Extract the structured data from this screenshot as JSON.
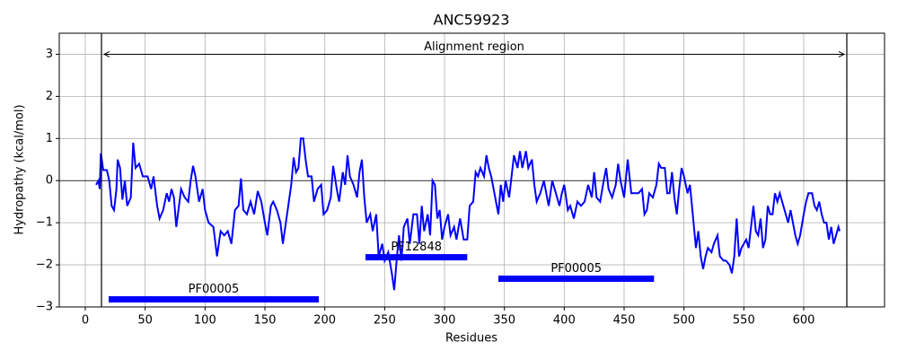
{
  "chart_data": {
    "type": "line",
    "title": "ANC59923",
    "xlabel": "Residues",
    "ylabel": "Hydropathy (kcal/mol)",
    "xlim": [
      -21.75,
      667.5
    ],
    "ylim": [
      -3,
      3.5
    ],
    "xticks": [
      0,
      50,
      100,
      150,
      200,
      250,
      300,
      350,
      400,
      450,
      500,
      550,
      600
    ],
    "yticks": [
      {
        "value": -3,
        "label": "−3"
      },
      {
        "value": -2,
        "label": "−2"
      },
      {
        "value": -1,
        "label": "−1"
      },
      0,
      1,
      2,
      3
    ],
    "grid": true,
    "hline": 0,
    "vlines": [
      13.5,
      636
    ],
    "arrow": {
      "start": 13.5,
      "end": 636,
      "y": 3,
      "label": "Alignment region"
    },
    "domains": [
      {
        "name": "PF00005",
        "start": 19.5,
        "end": 195,
        "y": -2.82
      },
      {
        "name": "PF12848",
        "start": 234,
        "end": 319,
        "y": -1.82
      },
      {
        "name": "PF00005",
        "start": 345,
        "end": 475,
        "y": -2.33
      }
    ],
    "domain_color": "#0000ff",
    "x": [
      9,
      11,
      12,
      13,
      15,
      18,
      20,
      22,
      24,
      26,
      27,
      29,
      31,
      33,
      35,
      38,
      40,
      42,
      45,
      48,
      52,
      55,
      57,
      60,
      62,
      65,
      68,
      70,
      72,
      74,
      76,
      80,
      83,
      86,
      88,
      90,
      92,
      95,
      98,
      100,
      103,
      107,
      110,
      113,
      116,
      119,
      122,
      125,
      128,
      130,
      132,
      135,
      138,
      141,
      144,
      147,
      150,
      152,
      155,
      157,
      160,
      163,
      165,
      168,
      170,
      172,
      174,
      176,
      178,
      180,
      182,
      184,
      186,
      189,
      191,
      194,
      197,
      199,
      202,
      205,
      207,
      210,
      212,
      215,
      217,
      219,
      221,
      224,
      227,
      229,
      231,
      233,
      235,
      238,
      240,
      243,
      245,
      248,
      250,
      253,
      256,
      258,
      260,
      262,
      264,
      266,
      269,
      271,
      274,
      277,
      279,
      281,
      283,
      286,
      288,
      290,
      292,
      294,
      296,
      298,
      300,
      303,
      305,
      308,
      310,
      313,
      316,
      319,
      321,
      324,
      326,
      328,
      330,
      333,
      335,
      337,
      339,
      341,
      343,
      345,
      347,
      349,
      351,
      354,
      356,
      358,
      361,
      363,
      365,
      368,
      370,
      373,
      375,
      377,
      380,
      383,
      385,
      387,
      390,
      393,
      396,
      398,
      400,
      403,
      405,
      408,
      411,
      414,
      417,
      420,
      423,
      425,
      427,
      430,
      433,
      435,
      437,
      440,
      443,
      445,
      447,
      450,
      453,
      456,
      459,
      462,
      465,
      467,
      469,
      471,
      474,
      477,
      479,
      481,
      484,
      486,
      488,
      490,
      492,
      494,
      496,
      498,
      500,
      503,
      505,
      508,
      510,
      512,
      514,
      516,
      518,
      520,
      523,
      525,
      528,
      530,
      533,
      535,
      538,
      540,
      542,
      544,
      546,
      548,
      550,
      552,
      554,
      556,
      558,
      560,
      562,
      564,
      566,
      568,
      570,
      572,
      574,
      576,
      578,
      580,
      582,
      585,
      587,
      589,
      591,
      593,
      595,
      597,
      600,
      602,
      604,
      607,
      609,
      611,
      613,
      615,
      617,
      619,
      621,
      623,
      625,
      627,
      629,
      630
    ],
    "series": [
      {
        "name": "Hydropathy",
        "color": "#0000ff",
        "values": [
          -0.1,
          0,
          -0.2,
          0.65,
          0.25,
          0.25,
          0,
          -0.6,
          -0.7,
          -0.2,
          0.5,
          0.3,
          -0.45,
          0,
          -0.6,
          -0.4,
          0.9,
          0.3,
          0.4,
          0.1,
          0.1,
          -0.2,
          0.1,
          -0.6,
          -0.9,
          -0.7,
          -0.3,
          -0.5,
          -0.2,
          -0.4,
          -1.1,
          -0.2,
          -0.4,
          -0.5,
          0,
          0.35,
          0.1,
          -0.5,
          -0.2,
          -0.7,
          -1.0,
          -1.1,
          -1.8,
          -1.2,
          -1.3,
          -1.2,
          -1.5,
          -0.7,
          -0.6,
          0.05,
          -0.7,
          -0.8,
          -0.5,
          -0.8,
          -0.25,
          -0.5,
          -1.0,
          -1.3,
          -0.6,
          -0.5,
          -0.7,
          -1.0,
          -1.5,
          -0.9,
          -0.5,
          -0.1,
          0.55,
          0.2,
          0.3,
          1.0,
          1.0,
          0.5,
          0.1,
          0.1,
          -0.5,
          -0.2,
          -0.1,
          -0.8,
          -0.7,
          -0.4,
          0.35,
          -0.2,
          -0.5,
          0.2,
          -0.1,
          0.6,
          0.1,
          -0.1,
          -0.4,
          0.2,
          0.5,
          -0.4,
          -1.0,
          -0.8,
          -1.2,
          -0.8,
          -1.8,
          -1.5,
          -1.9,
          -1.7,
          -2.2,
          -2.6,
          -1.9,
          -1.3,
          -1.9,
          -1.1,
          -0.9,
          -1.5,
          -0.8,
          -0.8,
          -1.5,
          -0.6,
          -1.2,
          -0.8,
          -1.3,
          0,
          -0.1,
          -0.9,
          -0.7,
          -1.4,
          -1.1,
          -0.8,
          -1.3,
          -1.1,
          -1.4,
          -0.9,
          -1.4,
          -1.4,
          -0.6,
          -0.5,
          0.2,
          0.1,
          0.3,
          0.1,
          0.6,
          0.3,
          0.1,
          -0.2,
          -0.5,
          -0.8,
          -0.1,
          -0.5,
          0,
          -0.4,
          0.1,
          0.6,
          0.3,
          0.7,
          0.3,
          0.7,
          0.3,
          0.5,
          -0.1,
          -0.5,
          -0.3,
          0,
          -0.3,
          -0.6,
          0,
          -0.3,
          -0.6,
          -0.3,
          -0.1,
          -0.7,
          -0.6,
          -0.9,
          -0.5,
          -0.6,
          -0.5,
          -0.1,
          -0.4,
          0.2,
          -0.4,
          -0.5,
          0,
          0.3,
          -0.2,
          -0.4,
          -0.1,
          0.4,
          0,
          -0.4,
          0.5,
          -0.3,
          -0.3,
          -0.3,
          -0.2,
          -0.8,
          -0.7,
          -0.3,
          -0.4,
          -0.1,
          0.4,
          0.3,
          0.3,
          -0.3,
          -0.3,
          0.2,
          -0.4,
          -0.8,
          -0.2,
          0.3,
          0.1,
          -0.3,
          -0.1,
          -1.0,
          -1.6,
          -1.2,
          -1.8,
          -2.1,
          -1.8,
          -1.6,
          -1.7,
          -1.5,
          -1.3,
          -1.8,
          -1.9,
          -1.9,
          -2.0,
          -2.2,
          -1.8,
          -0.9,
          -1.8,
          -1.6,
          -1.5,
          -1.4,
          -1.6,
          -1.1,
          -0.6,
          -1.2,
          -1.3,
          -0.9,
          -1.6,
          -1.4,
          -0.6,
          -0.8,
          -0.8,
          -0.3,
          -0.5,
          -0.3,
          -0.5,
          -0.8,
          -1.0,
          -0.7,
          -1.0,
          -1.3,
          -1.5,
          -1.3,
          -0.8,
          -0.5,
          -0.3,
          -0.3,
          -0.6,
          -0.7,
          -0.5,
          -0.8,
          -1.0,
          -1.0,
          -1.4,
          -1.1,
          -1.5,
          -1.3,
          -1.1,
          -1.2
        ]
      }
    ]
  }
}
